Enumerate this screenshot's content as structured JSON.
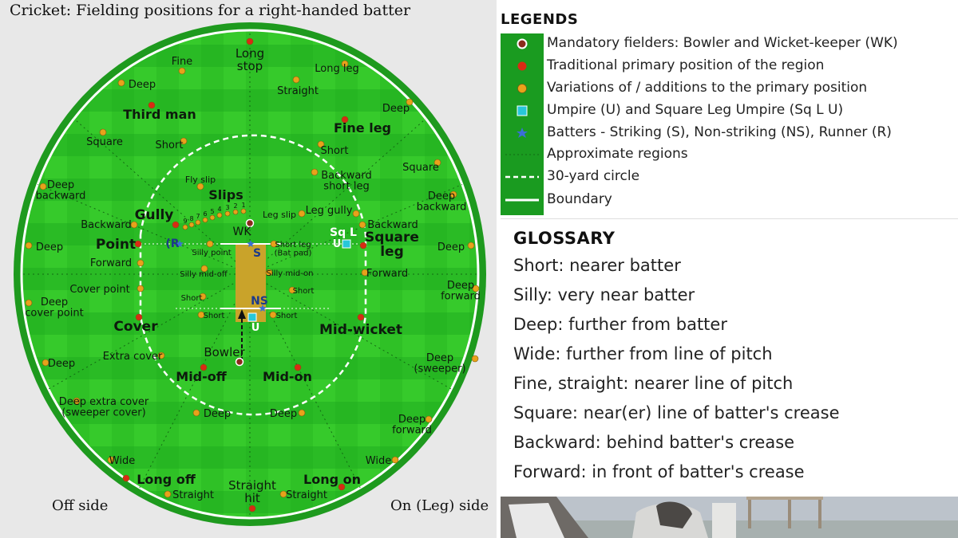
{
  "title": "Cricket: Fielding positions for a right-handed batter",
  "sides": {
    "off": "Off side",
    "on": "On (Leg) side"
  },
  "colors": {
    "field_light": "#3fcf2b",
    "field_dark": "#20b222",
    "outfield": "#1fa21f",
    "pitch": "#c9a32a",
    "primary": "#d92b14",
    "variation": "#e8a21b",
    "mandatory": "#8a2b1c",
    "umpire": "#27c7d8",
    "batter": "#3b6fd6"
  },
  "field_labels": {
    "long_stop": "Long\nstop",
    "fine_off": "Fine",
    "deep_off_tl": "Deep",
    "straight_top": "Straight",
    "long_leg": "Long leg",
    "deep_tr": "Deep",
    "third_man": "Third man",
    "fine_leg": "Fine leg",
    "square_off": "Square",
    "short_off": "Short",
    "short_leg_top": "Short",
    "backward_short_leg": "Backward\nshort leg",
    "square_leg_top": "Square",
    "fly_slip": "Fly slip",
    "slips": "Slips",
    "deep_backward_off": "Deep\nbackward",
    "deep_backward_leg": "Deep\nbackward",
    "leg_gully": "Leg gully",
    "leg_slip": "Leg slip",
    "gully": "Gully",
    "backward_off": "Backward",
    "backward_leg": "Backward",
    "wk": "WK",
    "sq_l": "Sq L",
    "u_sq": "U",
    "point": "Point",
    "r_batter": "(R",
    "deep_point": "Deep",
    "silly_point": "Silly point",
    "s": "S",
    "short_leg": "Short leg\n(Bat pad)",
    "square_leg": "Square\nleg",
    "deep_square_leg": "Deep",
    "forward_off": "Forward",
    "forward_leg": "Forward",
    "silly_mid_off": "Silly mid-off",
    "silly_mid_on": "Silly mid-on",
    "cover_point": "Cover point",
    "short_mo": "Short",
    "short_mon": "Short",
    "ns": "NS",
    "deep_forward_leg": "Deep\nforward",
    "deep_cover_point": "Deep\ncover point",
    "short_moff2": "Short",
    "short_mon2": "Short",
    "u_bowler": "U",
    "cover": "Cover",
    "mid_wicket": "Mid-wicket",
    "extra_cover": "Extra cover",
    "bowler": "Bowler",
    "deep_ec": "Deep",
    "deep_sweeper": "Deep\n(sweeper)",
    "mid_off": "Mid-off",
    "mid_on": "Mid-on",
    "deep_extra_cover": "Deep extra cover\n(sweeper cover)",
    "deep_mo": "Deep",
    "deep_mon": "Deep",
    "deep_forward_bottom": "Deep\nforward",
    "wide_off": "Wide",
    "wide_on": "Wide",
    "long_off": "Long off",
    "long_on": "Long on",
    "straight_hit": "Straight\nhit",
    "straight_lo": "Straight",
    "straight_lon": "Straight",
    "slip_nums": "9 8 7 6 5 4 3 2 1"
  },
  "legend": {
    "title": "LEGENDS",
    "items": [
      {
        "label": "Mandatory fielders: Bowler and Wicket-keeper (WK)",
        "symbol": "mandatory-dot"
      },
      {
        "label": "Traditional primary position of the region",
        "symbol": "primary-dot"
      },
      {
        "label": "Variations of / additions to the primary position",
        "symbol": "variation-dot"
      },
      {
        "label": "Umpire (U) and Square Leg Umpire (Sq L U)",
        "symbol": "umpire-square"
      },
      {
        "label": "Batters - Striking (S), Non-striking (NS), Runner (R)",
        "symbol": "batter-star"
      },
      {
        "label": "Approximate regions",
        "symbol": "dotted-line"
      },
      {
        "label": "30-yard circle",
        "symbol": "dashed-line"
      },
      {
        "label": "Boundary",
        "symbol": "solid-line"
      }
    ]
  },
  "glossary": {
    "title": "GLOSSARY",
    "items": [
      "Short: nearer batter",
      "Silly: very near batter",
      "Deep: further from batter",
      "Wide: further from line of pitch",
      "Fine, straight: nearer line of pitch",
      "Square: near(er) line of batter's crease",
      "Backward: behind batter's crease",
      "Forward: in front of batter's crease"
    ]
  }
}
